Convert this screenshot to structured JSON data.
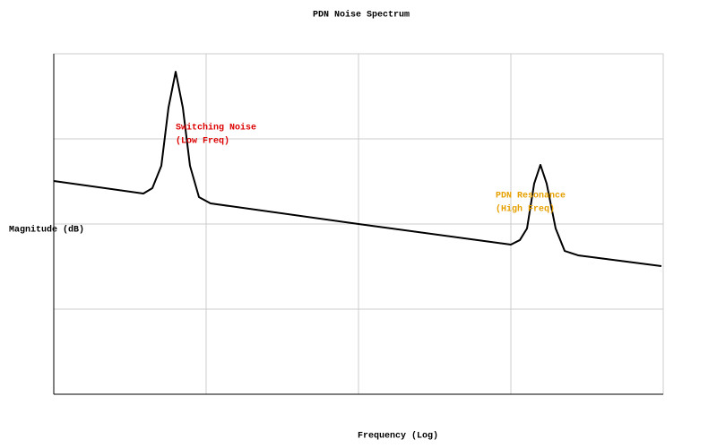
{
  "chart_data": {
    "type": "line",
    "title": "PDN Noise Spectrum",
    "x_label": "Frequency (Log)",
    "y_label": "Magnitude (dB)",
    "x": [
      0,
      0.588,
      0.647,
      0.706,
      0.753,
      0.8,
      0.847,
      0.894,
      0.953,
      1.029,
      2,
      3,
      3.059,
      3.106,
      3.153,
      3.194,
      3.235,
      3.294,
      3.353,
      3.441,
      3.988
    ],
    "series": [
      {
        "color": "#000000",
        "values": [
          2.505,
          2.358,
          2.421,
          2.684,
          3.368,
          3.789,
          3.368,
          2.684,
          2.316,
          2.242,
          2.0,
          1.758,
          1.811,
          1.947,
          2.474,
          2.695,
          2.474,
          1.947,
          1.684,
          1.632,
          1.505
        ]
      }
    ],
    "xlim": [
      0,
      4
    ],
    "ylim": [
      0,
      4
    ],
    "xticks": [
      1,
      2,
      3
    ],
    "yticks": [
      1,
      2,
      3
    ],
    "grid": true,
    "log_x": true,
    "annotations": [
      {
        "lines": [
          "Switching Noise",
          "(Low Freq)"
        ],
        "color": "#dd0000"
      },
      {
        "lines": [
          "PDN Resonance",
          "(High Freq)"
        ],
        "color": "#e6a000"
      }
    ]
  }
}
